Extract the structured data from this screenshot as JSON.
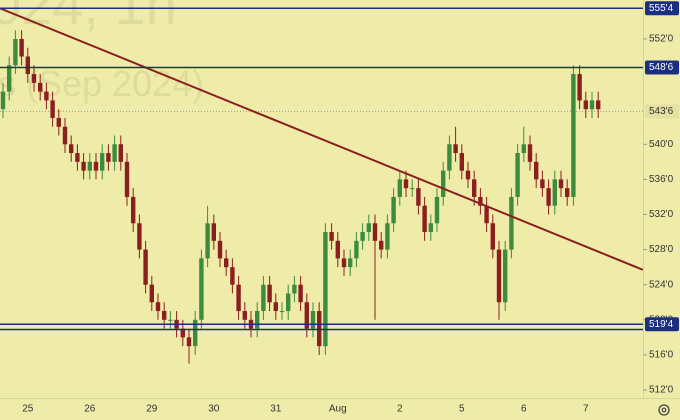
{
  "chart_data": {
    "type": "candlestick",
    "watermark": [
      "024, 1h",
      "s (Sep 2024)"
    ],
    "categories": [
      null,
      null,
      null,
      null,
      "25",
      null,
      null,
      null,
      null,
      null,
      null,
      null,
      null,
      null,
      "26",
      null,
      null,
      null,
      null,
      null,
      null,
      null,
      null,
      null,
      "29",
      null,
      null,
      null,
      null,
      null,
      null,
      null,
      null,
      null,
      "30",
      null,
      null,
      null,
      null,
      null,
      null,
      null,
      null,
      null,
      "31",
      null,
      null,
      null,
      null,
      null,
      null,
      null,
      null,
      null,
      "Aug",
      null,
      null,
      null,
      null,
      null,
      null,
      null,
      null,
      null,
      "2",
      null,
      null,
      null,
      null,
      null,
      null,
      null,
      null,
      null,
      "5",
      null,
      null,
      null,
      null,
      null,
      null,
      null,
      null,
      null,
      "6",
      null,
      null,
      null,
      null,
      null,
      null,
      null,
      null,
      null,
      "7",
      null,
      null
    ],
    "open": [
      544,
      546,
      549,
      552,
      550,
      548,
      547,
      546,
      545,
      543,
      542,
      540,
      539,
      538,
      537,
      538,
      537,
      539,
      538,
      540,
      538,
      534,
      531,
      528,
      524,
      522,
      521,
      520,
      520,
      519,
      518,
      517,
      520,
      527,
      531,
      529,
      527,
      526,
      524,
      521,
      520,
      519,
      521,
      524,
      522,
      521,
      521,
      523,
      524,
      522,
      519,
      521,
      517,
      530,
      529,
      527,
      526,
      527,
      529,
      530,
      531,
      529,
      528,
      531,
      534,
      536,
      535,
      535,
      533,
      530,
      531,
      534,
      537,
      540,
      539,
      537,
      536,
      534,
      533,
      531,
      528,
      522,
      528,
      534,
      539,
      540,
      538,
      536,
      535,
      533,
      536,
      535,
      534,
      548,
      545,
      544,
      545
    ],
    "high": [
      547,
      550,
      553,
      553,
      551,
      549,
      548,
      547,
      546,
      544,
      543,
      541,
      540,
      539,
      539,
      539,
      540,
      540,
      541,
      541,
      539,
      535,
      532,
      529,
      525,
      523,
      522,
      521,
      521,
      520,
      519,
      521,
      528,
      533,
      532,
      530,
      528,
      527,
      525,
      522,
      521,
      522,
      525,
      525,
      523,
      522,
      524,
      525,
      525,
      523,
      522,
      522,
      531,
      531,
      530,
      528,
      528,
      530,
      531,
      532,
      532,
      530,
      532,
      535,
      537,
      537,
      536,
      536,
      534,
      532,
      535,
      538,
      541,
      542,
      540,
      538,
      537,
      535,
      534,
      532,
      529,
      529,
      535,
      540,
      542,
      541,
      539,
      537,
      536,
      537,
      537,
      536,
      549,
      549,
      546,
      546,
      546
    ],
    "low": [
      543,
      545,
      548,
      549,
      547,
      546,
      545,
      544,
      542,
      541,
      539,
      538,
      537,
      536,
      536,
      536,
      536,
      537,
      537,
      537,
      533,
      530,
      527,
      523,
      521,
      520,
      519,
      519,
      518,
      517,
      515,
      516,
      519,
      526,
      528,
      526,
      525,
      523,
      520,
      519,
      518,
      518,
      520,
      521,
      520,
      520,
      520,
      522,
      521,
      518,
      518,
      516,
      516,
      528,
      526,
      525,
      525,
      526,
      528,
      529,
      520,
      527,
      527,
      530,
      533,
      534,
      534,
      532,
      529,
      529,
      530,
      533,
      536,
      538,
      536,
      535,
      533,
      532,
      530,
      527,
      520,
      521,
      527,
      533,
      538,
      537,
      535,
      534,
      532,
      532,
      534,
      533,
      533,
      544,
      543,
      543,
      543
    ],
    "close": [
      546,
      549,
      552,
      550,
      548,
      547,
      546,
      545,
      543,
      542,
      540,
      539,
      538,
      537,
      538,
      537,
      539,
      538,
      540,
      538,
      534,
      531,
      528,
      524,
      522,
      521,
      520,
      520,
      519,
      518,
      517,
      520,
      527,
      531,
      529,
      527,
      526,
      524,
      521,
      520,
      519,
      521,
      524,
      522,
      521,
      521,
      523,
      524,
      522,
      519,
      521,
      517,
      530,
      529,
      527,
      526,
      527,
      529,
      530,
      531,
      529,
      528,
      531,
      534,
      536,
      535,
      535,
      533,
      530,
      531,
      534,
      537,
      540,
      539,
      537,
      536,
      534,
      533,
      531,
      528,
      522,
      528,
      534,
      539,
      540,
      538,
      536,
      535,
      533,
      536,
      535,
      534,
      548,
      545,
      544,
      545,
      544
    ],
    "up_color": "#3d8c3d",
    "down_color": "#8b1e1e",
    "ylim": [
      511.09,
      556.44
    ],
    "yticks": [
      {
        "value": 512,
        "label": "512'0"
      },
      {
        "value": 516,
        "label": "516'0"
      },
      {
        "value": 520,
        "label": "520'0"
      },
      {
        "value": 524,
        "label": "524'0"
      },
      {
        "value": 528,
        "label": "528'0"
      },
      {
        "value": 532,
        "label": "532'0"
      },
      {
        "value": 536,
        "label": "536'0"
      },
      {
        "value": 540,
        "label": "540'0"
      },
      {
        "value": 552,
        "label": "552'0"
      }
    ],
    "hlines": [
      {
        "value": 555.5,
        "label": "555'4"
      },
      {
        "value": 548.75,
        "label": "548'6"
      },
      {
        "value": 519.5,
        "label": "519'4"
      },
      {
        "value": 518.9
      }
    ],
    "hline_color": "#1b2f80",
    "last_price": {
      "value": 543.75,
      "label": "543'6"
    },
    "trendline": {
      "x": [
        -0.5,
        103.2
      ],
      "y": [
        555.5,
        525.7
      ],
      "color": "#8b1e1e"
    }
  }
}
